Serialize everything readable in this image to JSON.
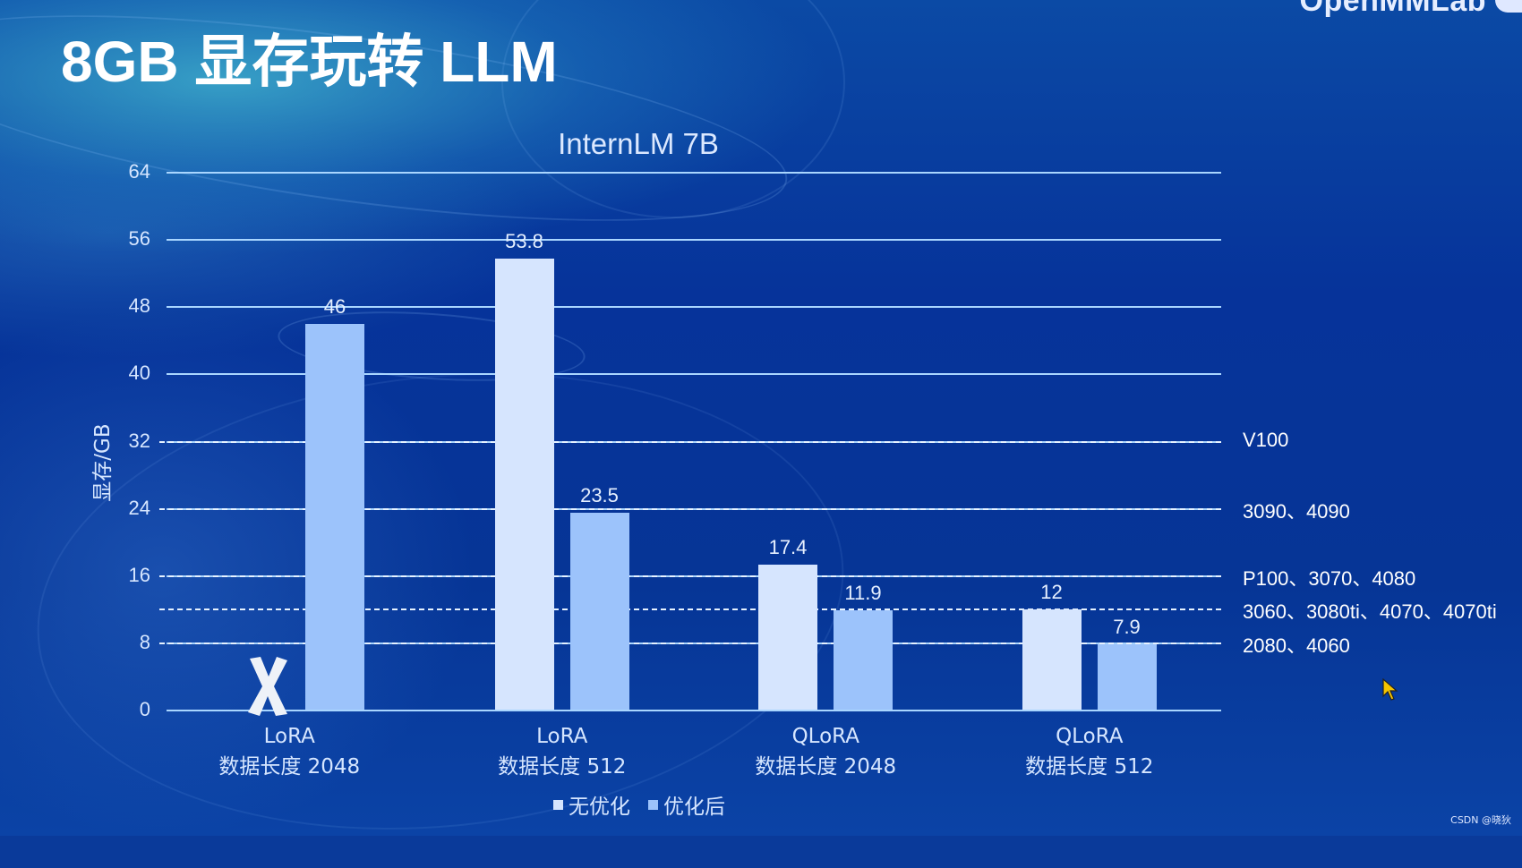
{
  "slide": {
    "title": "8GB 显存玩转 LLM",
    "logo_text": "OpenMMLab",
    "watermark": "CSDN @晓狄"
  },
  "colors": {
    "background": "#06339a",
    "bar_no_opt": "#d6e5fe",
    "bar_opt": "#9cc3fb",
    "gridline": "#a9d6ff",
    "cursor": "#f5c400"
  },
  "chart_data": {
    "type": "bar",
    "title": "InternLM 7B",
    "xlabel": "",
    "ylabel": "显存/GB",
    "ylim": [
      0,
      64
    ],
    "yticks": [
      0,
      8,
      16,
      24,
      32,
      40,
      48,
      56,
      64
    ],
    "grid": true,
    "legend_position": "bottom",
    "categories": [
      "LoRA 数据长度 2048",
      "LoRA 数据长度 512",
      "QLoRA 数据长度 2048",
      "QLoRA 数据长度 512"
    ],
    "category_lines": [
      [
        "LoRA",
        "数据长度 2048"
      ],
      [
        "LoRA",
        "数据长度 512"
      ],
      [
        "QLoRA",
        "数据长度 2048"
      ],
      [
        "QLoRA",
        "数据长度 512"
      ]
    ],
    "series": [
      {
        "name": "无优化",
        "values": [
          null,
          53.8,
          17.4,
          12
        ]
      },
      {
        "name": "优化后",
        "values": [
          46,
          23.5,
          11.9,
          7.9
        ]
      }
    ],
    "annotations": [
      {
        "type": "x-mark",
        "category": "LoRA 数据长度 2048",
        "series": "无优化",
        "meaning": "not runnable / OOM"
      }
    ],
    "reference_lines": [
      {
        "y": 32,
        "label": "V100",
        "style": "dashed"
      },
      {
        "y": 24,
        "label": "3090、4090",
        "style": "dashed"
      },
      {
        "y": 16,
        "label": "P100、3070、4080",
        "style": "dashed"
      },
      {
        "y": 12,
        "label": "3060、3080ti、4070、4070ti",
        "style": "dashed"
      },
      {
        "y": 8,
        "label": "2080、4060",
        "style": "dashed"
      }
    ]
  }
}
